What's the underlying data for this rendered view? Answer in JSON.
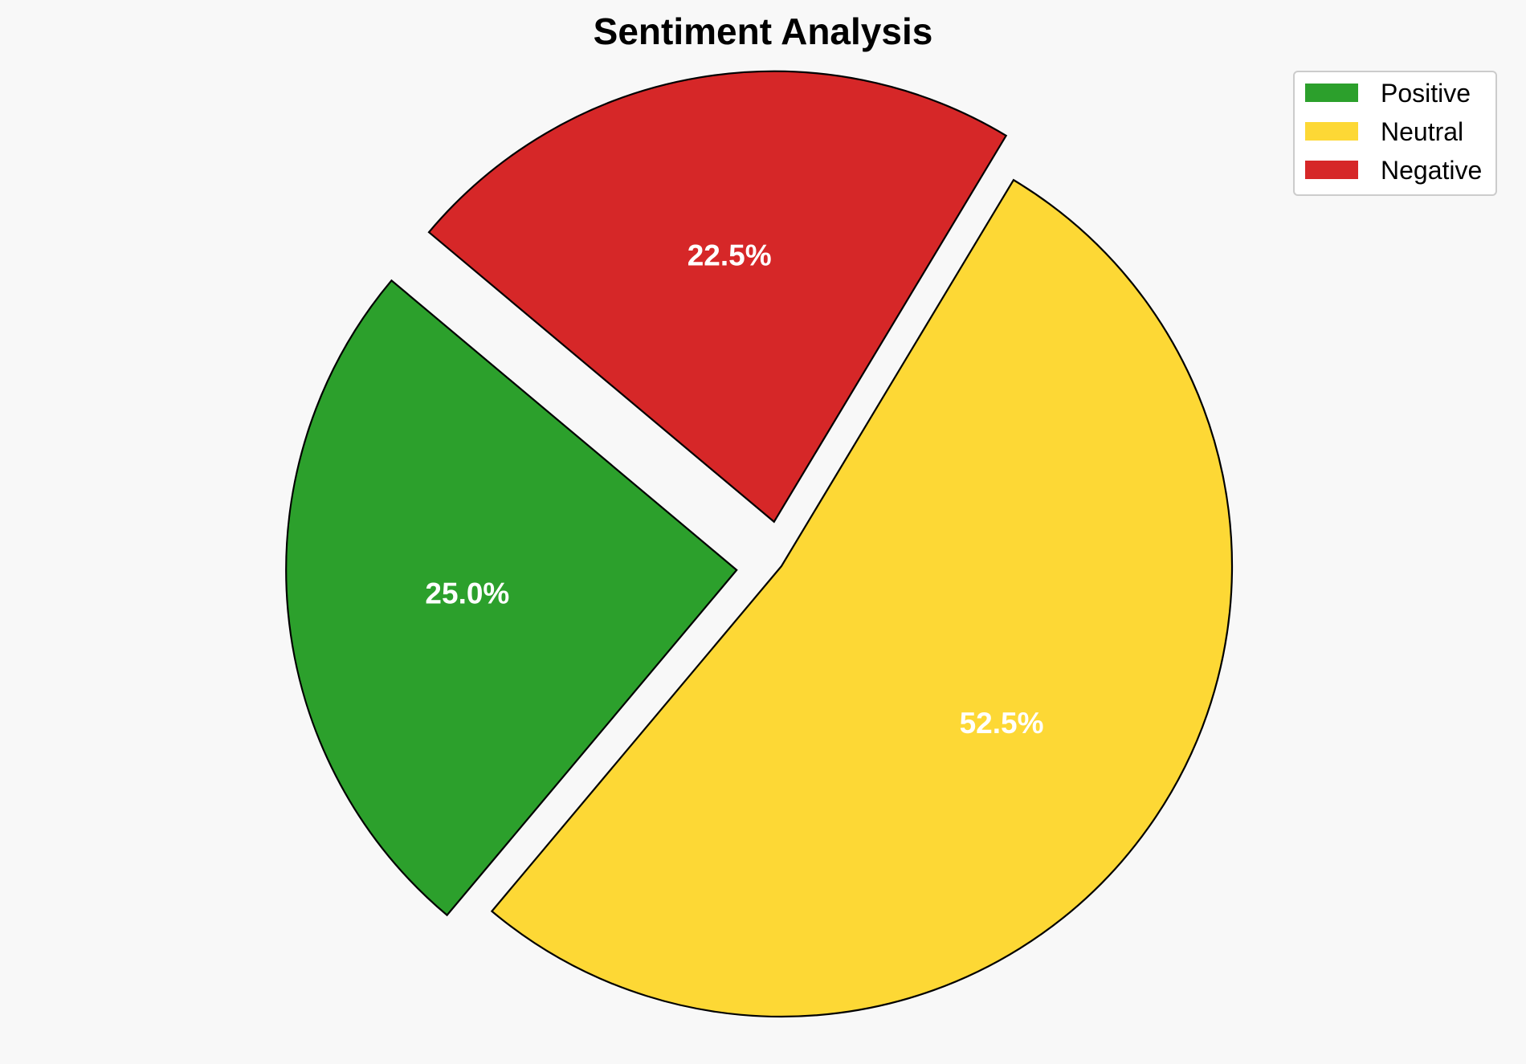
{
  "chart_data": {
    "type": "pie",
    "title": "Sentiment Analysis",
    "categories": [
      "Positive",
      "Neutral",
      "Negative"
    ],
    "values": [
      25.0,
      52.5,
      22.5
    ],
    "labels": [
      "25.0%",
      "52.5%",
      "22.5%"
    ],
    "colors": [
      "#2ca02c",
      "#fdd835",
      "#d62728"
    ],
    "exploded": [
      true,
      false,
      true
    ],
    "legend": {
      "placement": "top-right",
      "entries": [
        "Positive",
        "Neutral",
        "Negative"
      ]
    }
  }
}
